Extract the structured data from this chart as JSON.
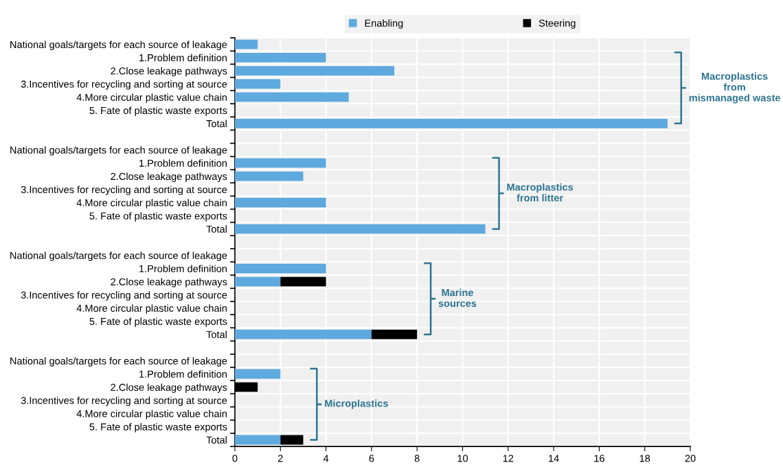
{
  "chart_data": {
    "type": "bar",
    "orientation": "horizontal",
    "stacked": true,
    "categories": [
      "National goals/targets for each source of leakage",
      "1.Problem definition",
      "2.Close leakage pathways",
      "3.Incentives for recycling and sorting at source",
      "4.More circular plastic value chain",
      "5. Fate of plastic waste exports",
      "Total",
      null,
      "National goals/targets for each source of leakage",
      "1.Problem definition",
      "2.Close leakage pathways",
      "3.Incentives for recycling and sorting at source",
      "4.More circular plastic value chain",
      "5. Fate of plastic waste exports",
      "Total",
      null,
      "National goals/targets for each source of leakage",
      "1.Problem definition",
      "2.Close leakage pathways",
      "3.Incentives for recycling and sorting at source",
      "4.More circular plastic value chain",
      "5. Fate of plastic waste exports",
      "Total",
      null,
      "National goals/targets for each source of leakage",
      "1.Problem definition",
      "2.Close leakage pathways",
      "3.Incentives for recycling and sorting at source",
      "4.More circular plastic value chain",
      "5. Fate of plastic waste exports",
      "Total"
    ],
    "series": [
      {
        "name": "Enabling",
        "color": "#5ea9de",
        "values": [
          1,
          4,
          7,
          2,
          5,
          null,
          19,
          null,
          null,
          4,
          3,
          null,
          4,
          null,
          11,
          null,
          null,
          4,
          2,
          null,
          null,
          null,
          6,
          null,
          null,
          2,
          null,
          null,
          null,
          null,
          2
        ]
      },
      {
        "name": "Steering",
        "color": "#000000",
        "values": [
          null,
          null,
          null,
          null,
          null,
          null,
          null,
          null,
          null,
          null,
          null,
          null,
          null,
          null,
          null,
          null,
          null,
          null,
          2,
          null,
          null,
          null,
          2,
          null,
          null,
          null,
          1,
          null,
          null,
          null,
          1
        ]
      }
    ],
    "xlim": [
      0,
      20
    ],
    "xticks": [
      0,
      2,
      4,
      6,
      8,
      10,
      12,
      14,
      16,
      18,
      20
    ],
    "grid": true,
    "legend": "top",
    "annotations": [
      "Macroplastics\nfrom\nmismanaged waste",
      "Macroplastics\nfrom litter",
      "Marine\nsources",
      "Microplastics"
    ]
  }
}
